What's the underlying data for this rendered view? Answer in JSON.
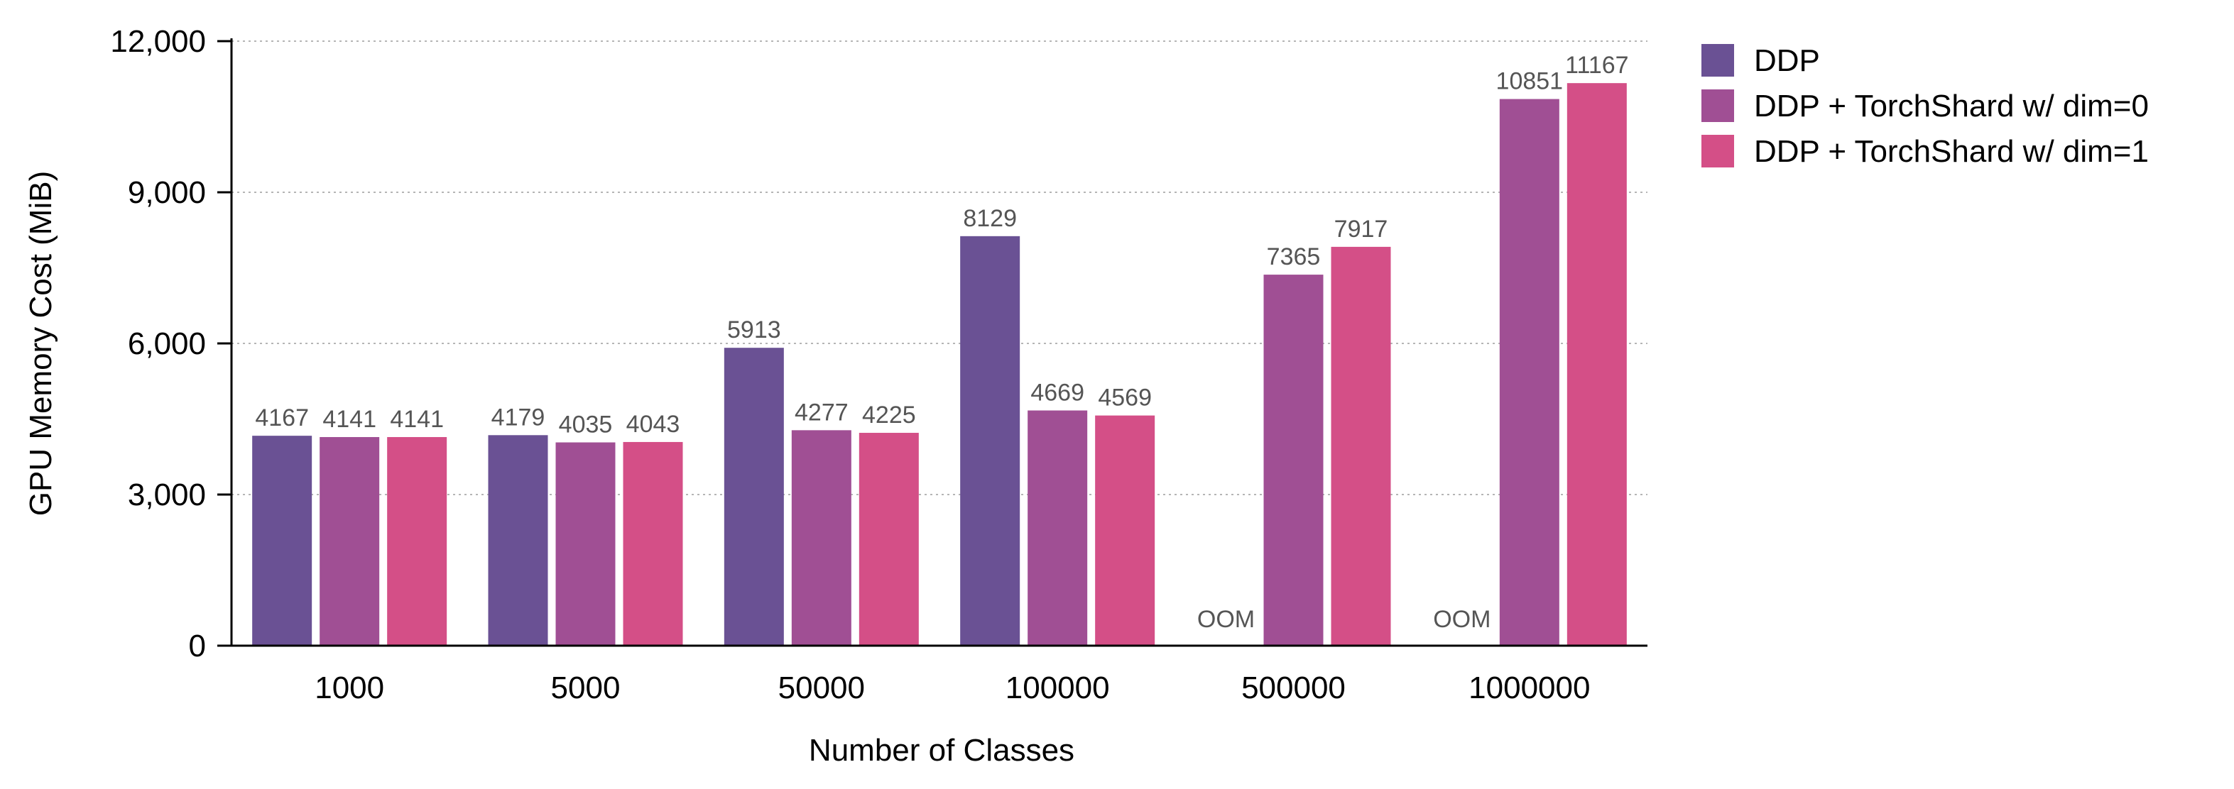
{
  "chart_data": {
    "type": "bar",
    "title": "",
    "xlabel": "Number of Classes",
    "ylabel": "GPU Memory Cost (MiB)",
    "ylim": [
      0,
      12000
    ],
    "yticks": [
      0,
      3000,
      6000,
      9000,
      12000
    ],
    "ytick_labels": [
      "0",
      "3,000",
      "6,000",
      "9,000",
      "12,000"
    ],
    "categories": [
      "1000",
      "5000",
      "50000",
      "100000",
      "500000",
      "1000000"
    ],
    "grid": "horizontal dotted",
    "legend_position": "right",
    "series": [
      {
        "name": "DDP",
        "color": "#6a5194",
        "values": [
          4167,
          4179,
          5913,
          8129,
          null,
          null
        ],
        "labels": [
          "4167",
          "4179",
          "5913",
          "8129",
          "OOM",
          "OOM"
        ]
      },
      {
        "name": "DDP + TorchShard w/ dim=0",
        "color": "#a04f94",
        "values": [
          4141,
          4035,
          4277,
          4669,
          7365,
          10851
        ],
        "labels": [
          "4141",
          "4035",
          "4277",
          "4669",
          "7365",
          "10851"
        ]
      },
      {
        "name": "DDP + TorchShard w/ dim=1",
        "color": "#d44f87",
        "values": [
          4141,
          4043,
          4225,
          4569,
          7917,
          11167
        ],
        "labels": [
          "4141",
          "4043",
          "4225",
          "4569",
          "7917",
          "11167"
        ]
      }
    ]
  }
}
